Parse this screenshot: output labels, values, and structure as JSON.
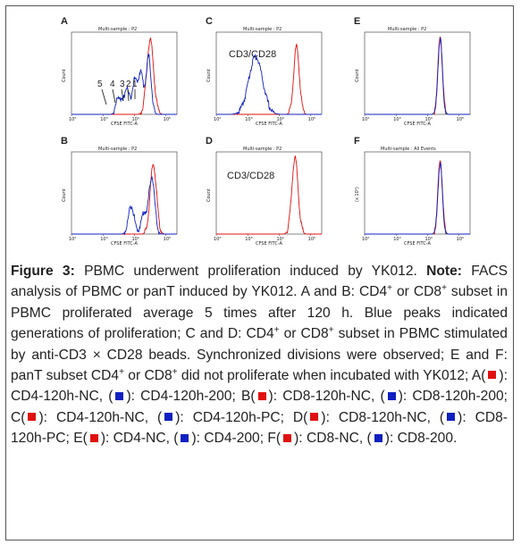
{
  "figure": {
    "panels": [
      {
        "id": "A",
        "letter": "A",
        "title": "Multi-sample : P2",
        "xlabel": "CFSE FITC-A",
        "ylabel": "Count",
        "annotation": "",
        "peak_labels": [
          "5",
          "4",
          "3",
          "2",
          "1"
        ]
      },
      {
        "id": "B",
        "letter": "B",
        "title": "Multi-sample : P2",
        "xlabel": "CFSE FITC-A",
        "ylabel": "Count",
        "annotation": ""
      },
      {
        "id": "C",
        "letter": "C",
        "title": "Multi-sample : P2",
        "xlabel": "CFSE FITC-A",
        "ylabel": "Count",
        "annotation": "CD3/CD28"
      },
      {
        "id": "D",
        "letter": "D",
        "title": "Multi-sample : P2",
        "xlabel": "CFSE FITC-A",
        "ylabel": "Count",
        "annotation": "CD3/CD28"
      },
      {
        "id": "E",
        "letter": "E",
        "title": "Multi-sample : P2",
        "xlabel": "CFSE FITC-A",
        "ylabel": "Count",
        "annotation": ""
      },
      {
        "id": "F",
        "letter": "F",
        "title": "Multi-sample : All Events",
        "xlabel": "CFSE FITC-A",
        "ylabel": "(x 10¹)",
        "annotation": ""
      }
    ],
    "xticks": [
      "10²",
      "10³",
      "10⁴",
      "10⁵"
    ],
    "colors": {
      "red": "#e01010",
      "blue": "#1020c0"
    }
  },
  "caption": {
    "label": "Figure 3:",
    "title": " PBMC underwent proliferation induced by YK012.",
    "note_label": "Note:",
    "t1": " FACS analysis of PBMC or panT induced by YK012. A and B: CD4",
    "t2": " or CD8",
    "t3": " subset in PBMC proliferated average 5 times after 120 h. Blue peaks indicated generations of proliferation; C and D: CD4",
    "t4": " or CD8",
    "t5": " subset in PBMC stimulated by anti-CD3 × CD28 beads. Synchronized divisions were observed; E and F: panT subset CD4",
    "t6": " or CD8",
    "t7": " did not proliferate when incubated with YK012; A(",
    "t8": "): CD4-120h-NC, (",
    "t9": "): CD4-120h-200; B(",
    "t10": "): CD8-120h-NC, (",
    "t11": "): CD8-120h-200; C(",
    "t12": "): CD4-120h-NC, (",
    "t13": "): CD4-120h-PC; D(",
    "t14": "): CD8-120h-NC, (",
    "t15": "): CD8-120h-PC; E(",
    "t16": "): CD4-NC, (",
    "t17": "): CD4-200; F(",
    "t18": "): CD8-NC, (",
    "t19": "): CD8-200.",
    "sup": "+"
  },
  "chart_data": [
    {
      "type": "line",
      "panel": "A",
      "title": "Multi-sample : P2",
      "xlabel": "CFSE FITC-A",
      "ylabel": "Count",
      "log_x": true,
      "series": [
        {
          "name": "CD4-120h-NC",
          "color": "red",
          "peaks_log10": [
            4.5
          ]
        },
        {
          "name": "CD4-120h-200",
          "color": "blue",
          "peaks_log10": [
            3.5,
            3.75,
            4.0,
            4.2,
            4.45
          ]
        }
      ]
    },
    {
      "type": "line",
      "panel": "B",
      "title": "Multi-sample : P2",
      "xlabel": "CFSE FITC-A",
      "ylabel": "Count",
      "log_x": true,
      "series": [
        {
          "name": "CD8-120h-NC",
          "color": "red",
          "peaks_log10": [
            4.6
          ]
        },
        {
          "name": "CD8-120h-200",
          "color": "blue",
          "peaks_log10": [
            3.9,
            4.3,
            4.55
          ]
        }
      ]
    },
    {
      "type": "line",
      "panel": "C",
      "title": "Multi-sample : P2",
      "xlabel": "CFSE FITC-A",
      "ylabel": "Count",
      "log_x": true,
      "series": [
        {
          "name": "CD4-120h-NC",
          "color": "red",
          "peaks_log10": [
            4.55
          ]
        },
        {
          "name": "CD4-120h-PC",
          "color": "blue",
          "peaks_log10": [
            3.25
          ]
        }
      ]
    },
    {
      "type": "line",
      "panel": "D",
      "title": "Multi-sample : P2",
      "xlabel": "CFSE FITC-A",
      "ylabel": "Count",
      "log_x": true,
      "series": [
        {
          "name": "CD8-120h-NC",
          "color": "red",
          "peaks_log10": [
            4.5
          ]
        },
        {
          "name": "CD8-120h-PC",
          "color": "blue",
          "peaks_log10": []
        }
      ]
    },
    {
      "type": "line",
      "panel": "E",
      "title": "Multi-sample : P2",
      "xlabel": "CFSE FITC-A",
      "ylabel": "Count",
      "log_x": true,
      "series": [
        {
          "name": "CD4-NC",
          "color": "red",
          "peaks_log10": [
            4.4
          ]
        },
        {
          "name": "CD4-200",
          "color": "blue",
          "peaks_log10": [
            4.4
          ]
        }
      ]
    },
    {
      "type": "line",
      "panel": "F",
      "title": "Multi-sample : All Events",
      "xlabel": "CFSE FITC-A",
      "ylabel": "(x 10¹)",
      "log_x": true,
      "series": [
        {
          "name": "CD8-NC",
          "color": "red",
          "peaks_log10": [
            4.4
          ]
        },
        {
          "name": "CD8-200",
          "color": "blue",
          "peaks_log10": [
            4.4
          ]
        }
      ]
    }
  ]
}
